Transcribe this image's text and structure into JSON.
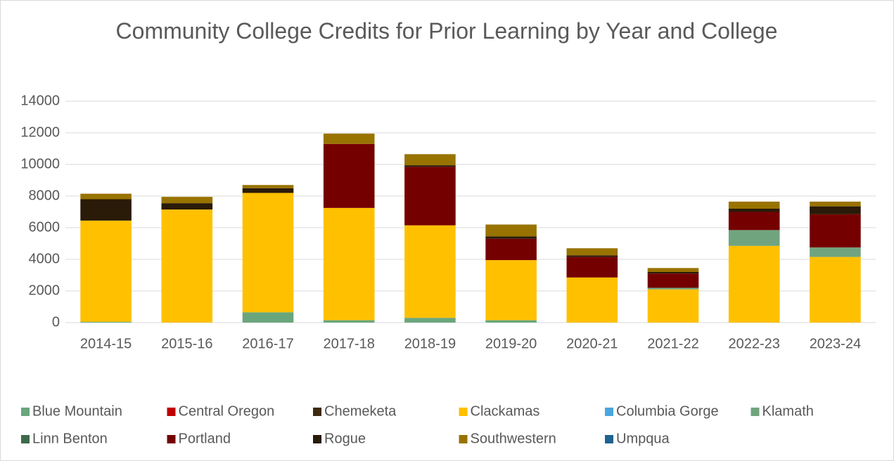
{
  "chart_data": {
    "type": "stacked_bar",
    "title": "Community College Credits for Prior Learning by Year and College",
    "categories": [
      "2014-15",
      "2015-16",
      "2016-17",
      "2017-18",
      "2018-19",
      "2019-20",
      "2020-21",
      "2021-22",
      "2022-23",
      "2023-24"
    ],
    "ylim": [
      0,
      14000
    ],
    "yticks": [
      0,
      2000,
      4000,
      6000,
      8000,
      10000,
      12000,
      14000
    ],
    "grid": true,
    "legend": "bottom",
    "series": [
      {
        "name": "Blue Mountain",
        "color": "#6aa67c",
        "values": [
          50,
          0,
          650,
          150,
          300,
          150,
          0,
          0,
          0,
          0
        ]
      },
      {
        "name": "Central Oregon",
        "color": "#c00000",
        "values": [
          0,
          0,
          0,
          0,
          0,
          0,
          0,
          0,
          0,
          0
        ]
      },
      {
        "name": "Chemeketa",
        "color": "#3f2a0e",
        "values": [
          0,
          0,
          0,
          0,
          0,
          0,
          0,
          0,
          0,
          0
        ]
      },
      {
        "name": "Clackamas",
        "color": "#ffc000",
        "values": [
          6400,
          7150,
          7550,
          7100,
          5850,
          3800,
          2850,
          2100,
          4850,
          4150
        ]
      },
      {
        "name": "Columbia Gorge",
        "color": "#4aa6de",
        "values": [
          0,
          0,
          0,
          0,
          0,
          0,
          0,
          0,
          0,
          0
        ]
      },
      {
        "name": "Klamath",
        "color": "#70a47f",
        "values": [
          0,
          0,
          0,
          0,
          0,
          0,
          0,
          100,
          1000,
          600
        ]
      },
      {
        "name": "Linn Benton",
        "color": "#3d6b4a",
        "values": [
          0,
          0,
          0,
          0,
          0,
          0,
          0,
          0,
          0,
          0
        ]
      },
      {
        "name": "Portland",
        "color": "#750000",
        "values": [
          0,
          0,
          0,
          4050,
          3700,
          1350,
          1300,
          900,
          1150,
          2100
        ]
      },
      {
        "name": "Rogue",
        "color": "#2a1a08",
        "values": [
          1350,
          400,
          300,
          0,
          100,
          150,
          100,
          100,
          200,
          500
        ]
      },
      {
        "name": "Southwestern",
        "color": "#997300",
        "values": [
          350,
          400,
          200,
          650,
          700,
          750,
          450,
          250,
          450,
          300
        ]
      },
      {
        "name": "Umpqua",
        "color": "#1f6391",
        "values": [
          0,
          0,
          0,
          0,
          0,
          0,
          0,
          0,
          0,
          0
        ]
      }
    ]
  }
}
